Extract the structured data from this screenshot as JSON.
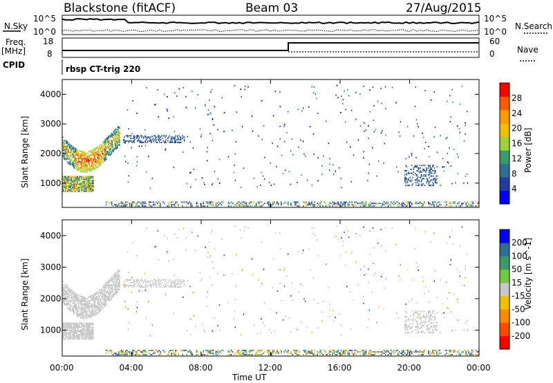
{
  "header": {
    "station": "Blackstone (fitACF)",
    "beam": "Beam 03",
    "date": "27/Aug/2015"
  },
  "noise_panel": {
    "left_label": "N.Sky",
    "left_ticks": [
      "10^5",
      "10^0"
    ],
    "right_label": "N.Search",
    "right_ticks": [
      "10^5",
      "10^0"
    ]
  },
  "freq_panel": {
    "left_label_1": "Freq.",
    "left_label_2": "[MHz]",
    "left_ticks": [
      "18",
      "8"
    ],
    "right_label": "Nave",
    "right_ticks": [
      "60",
      "0"
    ]
  },
  "cpid_panel": {
    "label": "CPID",
    "program": "rbsp CT-trig 220"
  },
  "colors": {
    "power_scale": [
      "#0000ff",
      "#1f3f9f",
      "#2f6f8f",
      "#3a9a6a",
      "#9ad43a",
      "#f0c000",
      "#ff9a00",
      "#ff5a00",
      "#ff0000"
    ],
    "velocity_scale": [
      "#ff0000",
      "#ff4a00",
      "#ff8a00",
      "#f0c000",
      "#c8c8c8",
      "#c8c8c8",
      "#70cc40",
      "#3a9a6a",
      "#2f6f8f",
      "#1f3f9f",
      "#0000ff"
    ],
    "ground_scatter": "#c8c8c8"
  },
  "chart_data": [
    {
      "type": "heatmap",
      "title": "",
      "xlabel": "",
      "ylabel": "Slant Range [km]",
      "x_ticks": [
        "00:00",
        "04:00",
        "08:00",
        "12:00",
        "16:00",
        "20:00",
        "00:00"
      ],
      "y_ticks": [
        "1000",
        "2000",
        "3000",
        "4000"
      ],
      "xlim_hours": [
        0,
        24
      ],
      "ylim_km": [
        180,
        4500
      ],
      "colorbar": {
        "label": "Power [dB]",
        "ticks": [
          "4",
          "8",
          "12",
          "16",
          "20",
          "24",
          "28"
        ],
        "range": [
          0,
          30
        ]
      },
      "features": [
        {
          "name": "arc",
          "t_start": 0.0,
          "t_end": 3.3,
          "range_km": [
            1500,
            2700
          ],
          "power_db": [
            4,
            28
          ]
        },
        {
          "name": "low-blob",
          "t_start": 0.0,
          "t_end": 1.8,
          "range_km": [
            700,
            1200
          ],
          "power_db": [
            4,
            20
          ]
        },
        {
          "name": "near-range-band",
          "t_start": 2.5,
          "t_end": 24.0,
          "range_km": [
            200,
            350
          ],
          "power_db": [
            4,
            20
          ]
        },
        {
          "name": "scattered",
          "t_start": 3.5,
          "t_end": 23.5,
          "range_km": [
            800,
            4300
          ],
          "power_db": [
            4,
            12
          ]
        }
      ]
    },
    {
      "type": "heatmap",
      "title": "",
      "xlabel": "Time UT",
      "ylabel": "Slant Range [km]",
      "x_ticks": [
        "00:00",
        "04:00",
        "08:00",
        "12:00",
        "16:00",
        "20:00",
        "00:00"
      ],
      "y_ticks": [
        "1000",
        "2000",
        "3000",
        "4000"
      ],
      "xlim_hours": [
        0,
        24
      ],
      "ylim_km": [
        180,
        4500
      ],
      "colorbar": {
        "label": "Velocity [m s^-1]",
        "ticks": [
          "200",
          "100",
          "50",
          "15",
          "-15",
          "-50",
          "-100",
          "-200"
        ],
        "range": [
          -250,
          250
        ]
      },
      "features": [
        {
          "name": "ground-scatter-arc",
          "t_start": 0.0,
          "t_end": 3.3,
          "range_km": [
            1500,
            2700
          ],
          "velocity": "ground scatter"
        },
        {
          "name": "ground-scatter-blob",
          "t_start": 0.0,
          "t_end": 1.8,
          "range_km": [
            700,
            1200
          ],
          "velocity": "ground scatter"
        },
        {
          "name": "near-range-band",
          "t_start": 2.5,
          "t_end": 24.0,
          "range_km": [
            200,
            350
          ],
          "velocity_ms": [
            -100,
            100
          ]
        }
      ]
    }
  ]
}
